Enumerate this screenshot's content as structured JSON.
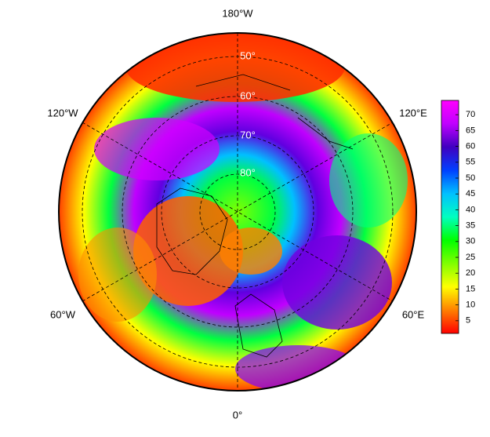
{
  "map": {
    "projection": "north polar stereographic",
    "longitude_labels": [
      "180°W",
      "120°W",
      "120°E",
      "60°W",
      "60°E",
      "0°"
    ],
    "latitude_labels": [
      "50°",
      "60°",
      "70°",
      "80°"
    ],
    "colorbar": {
      "ticks": [
        5,
        10,
        15,
        20,
        25,
        30,
        35,
        40,
        45,
        50,
        55,
        60,
        65,
        70
      ],
      "clim": [
        1,
        74.5
      ],
      "colormap": [
        "#ff0000",
        "#ff8000",
        "#ffff00",
        "#80ff00",
        "#00ff00",
        "#00ffc0",
        "#00c0ff",
        "#0040ff",
        "#4000c0",
        "#c000ff",
        "#ff00ff"
      ]
    }
  }
}
